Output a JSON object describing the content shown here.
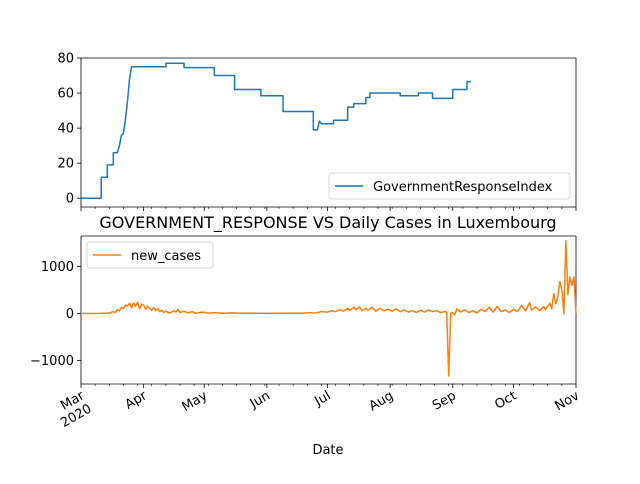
{
  "chart_data": [
    {
      "type": "line",
      "title": "",
      "xlabel": "",
      "ylabel": "",
      "ylim": [
        -5,
        80
      ],
      "yticks": [
        0,
        20,
        40,
        60,
        80
      ],
      "legend": "lower-right",
      "series": [
        {
          "name": "GovernmentResponseIndex",
          "color": "#1f77b4",
          "points": [
            [
              "2020-03-01",
              0
            ],
            [
              "2020-03-11",
              0
            ],
            [
              "2020-03-11",
              12
            ],
            [
              "2020-03-14",
              12
            ],
            [
              "2020-03-14",
              19
            ],
            [
              "2020-03-17",
              19
            ],
            [
              "2020-03-17",
              26
            ],
            [
              "2020-03-19",
              26
            ],
            [
              "2020-03-20",
              30
            ],
            [
              "2020-03-21",
              36
            ],
            [
              "2020-03-22",
              37
            ],
            [
              "2020-03-23",
              45
            ],
            [
              "2020-03-24",
              55
            ],
            [
              "2020-03-25",
              68
            ],
            [
              "2020-03-26",
              75
            ],
            [
              "2020-04-12",
              75
            ],
            [
              "2020-04-12",
              77
            ],
            [
              "2020-04-21",
              77
            ],
            [
              "2020-04-21",
              74.5
            ],
            [
              "2020-05-06",
              74.5
            ],
            [
              "2020-05-06",
              70
            ],
            [
              "2020-05-16",
              70
            ],
            [
              "2020-05-16",
              62
            ],
            [
              "2020-05-29",
              62
            ],
            [
              "2020-05-29",
              58.5
            ],
            [
              "2020-06-09",
              58.5
            ],
            [
              "2020-06-09",
              49.5
            ],
            [
              "2020-06-24",
              49.5
            ],
            [
              "2020-06-24",
              39
            ],
            [
              "2020-06-26",
              39
            ],
            [
              "2020-06-27",
              44
            ],
            [
              "2020-06-28",
              42.5
            ],
            [
              "2020-07-04",
              42.5
            ],
            [
              "2020-07-04",
              44.5
            ],
            [
              "2020-07-11",
              44.5
            ],
            [
              "2020-07-11",
              52
            ],
            [
              "2020-07-14",
              52
            ],
            [
              "2020-07-14",
              54
            ],
            [
              "2020-07-20",
              54
            ],
            [
              "2020-07-20",
              57.5
            ],
            [
              "2020-07-22",
              57.5
            ],
            [
              "2020-07-22",
              60
            ],
            [
              "2020-08-06",
              60
            ],
            [
              "2020-08-06",
              58.5
            ],
            [
              "2020-08-15",
              58.5
            ],
            [
              "2020-08-15",
              60
            ],
            [
              "2020-08-22",
              60
            ],
            [
              "2020-08-22",
              57
            ],
            [
              "2020-09-01",
              57
            ],
            [
              "2020-09-01",
              62
            ],
            [
              "2020-09-08",
              62
            ],
            [
              "2020-09-08",
              66.5
            ],
            [
              "2020-09-10",
              66.5
            ]
          ]
        }
      ]
    },
    {
      "type": "line",
      "title": "GOVERNMENT_RESPONSE VS Daily Cases in Luxembourg",
      "xlabel": "Date",
      "ylabel": "",
      "ylim": [
        -1500,
        1650
      ],
      "yticks": [
        -1000,
        0,
        1000
      ],
      "legend": "upper-left",
      "x_tick_labels": [
        [
          "2020-03-01",
          "Mar\n2020"
        ],
        [
          "2020-04-01",
          "Apr"
        ],
        [
          "2020-05-01",
          "May"
        ],
        [
          "2020-06-01",
          "Jun"
        ],
        [
          "2020-07-01",
          "Jul"
        ],
        [
          "2020-08-01",
          "Aug"
        ],
        [
          "2020-09-01",
          "Sep"
        ],
        [
          "2020-10-01",
          "Oct"
        ],
        [
          "2020-11-01",
          "Nov"
        ]
      ],
      "series": [
        {
          "name": "new_cases",
          "color": "#ff7f0e",
          "points": [
            [
              "2020-03-01",
              0
            ],
            [
              "2020-03-10",
              2
            ],
            [
              "2020-03-15",
              10
            ],
            [
              "2020-03-17",
              40
            ],
            [
              "2020-03-18",
              20
            ],
            [
              "2020-03-19",
              80
            ],
            [
              "2020-03-20",
              60
            ],
            [
              "2020-03-21",
              130
            ],
            [
              "2020-03-22",
              110
            ],
            [
              "2020-03-23",
              180
            ],
            [
              "2020-03-24",
              160
            ],
            [
              "2020-03-25",
              220
            ],
            [
              "2020-03-26",
              120
            ],
            [
              "2020-03-27",
              230
            ],
            [
              "2020-03-28",
              150
            ],
            [
              "2020-03-29",
              240
            ],
            [
              "2020-03-30",
              100
            ],
            [
              "2020-03-31",
              200
            ],
            [
              "2020-04-01",
              180
            ],
            [
              "2020-04-02",
              90
            ],
            [
              "2020-04-03",
              160
            ],
            [
              "2020-04-04",
              110
            ],
            [
              "2020-04-05",
              70
            ],
            [
              "2020-04-06",
              130
            ],
            [
              "2020-04-07",
              60
            ],
            [
              "2020-04-08",
              100
            ],
            [
              "2020-04-09",
              40
            ],
            [
              "2020-04-10",
              70
            ],
            [
              "2020-04-11",
              20
            ],
            [
              "2020-04-12",
              50
            ],
            [
              "2020-04-14",
              10
            ],
            [
              "2020-04-16",
              60
            ],
            [
              "2020-04-17",
              30
            ],
            [
              "2020-04-18",
              90
            ],
            [
              "2020-04-19",
              20
            ],
            [
              "2020-04-21",
              50
            ],
            [
              "2020-04-23",
              10
            ],
            [
              "2020-04-25",
              40
            ],
            [
              "2020-04-27",
              5
            ],
            [
              "2020-04-30",
              30
            ],
            [
              "2020-05-03",
              10
            ],
            [
              "2020-05-06",
              20
            ],
            [
              "2020-05-10",
              5
            ],
            [
              "2020-05-15",
              15
            ],
            [
              "2020-05-20",
              5
            ],
            [
              "2020-05-25",
              10
            ],
            [
              "2020-06-01",
              3
            ],
            [
              "2020-06-10",
              8
            ],
            [
              "2020-06-18",
              5
            ],
            [
              "2020-06-22",
              20
            ],
            [
              "2020-06-25",
              10
            ],
            [
              "2020-06-28",
              40
            ],
            [
              "2020-07-01",
              30
            ],
            [
              "2020-07-03",
              60
            ],
            [
              "2020-07-05",
              40
            ],
            [
              "2020-07-07",
              80
            ],
            [
              "2020-07-09",
              50
            ],
            [
              "2020-07-11",
              110
            ],
            [
              "2020-07-12",
              70
            ],
            [
              "2020-07-14",
              130
            ],
            [
              "2020-07-15",
              80
            ],
            [
              "2020-07-17",
              140
            ],
            [
              "2020-07-18",
              60
            ],
            [
              "2020-07-20",
              110
            ],
            [
              "2020-07-21",
              70
            ],
            [
              "2020-07-23",
              130
            ],
            [
              "2020-07-25",
              50
            ],
            [
              "2020-07-27",
              110
            ],
            [
              "2020-07-29",
              60
            ],
            [
              "2020-07-31",
              90
            ],
            [
              "2020-08-02",
              50
            ],
            [
              "2020-08-04",
              100
            ],
            [
              "2020-08-06",
              40
            ],
            [
              "2020-08-08",
              80
            ],
            [
              "2020-08-10",
              30
            ],
            [
              "2020-08-12",
              60
            ],
            [
              "2020-08-14",
              20
            ],
            [
              "2020-08-16",
              70
            ],
            [
              "2020-08-18",
              30
            ],
            [
              "2020-08-20",
              80
            ],
            [
              "2020-08-22",
              40
            ],
            [
              "2020-08-24",
              60
            ],
            [
              "2020-08-26",
              20
            ],
            [
              "2020-08-28",
              40
            ],
            [
              "2020-08-29",
              30
            ],
            [
              "2020-08-30",
              -1330
            ],
            [
              "2020-08-31",
              10
            ],
            [
              "2020-09-01",
              20
            ],
            [
              "2020-09-02",
              -30
            ],
            [
              "2020-09-03",
              100
            ],
            [
              "2020-09-05",
              30
            ],
            [
              "2020-09-07",
              80
            ],
            [
              "2020-09-09",
              20
            ],
            [
              "2020-09-11",
              60
            ],
            [
              "2020-09-13",
              10
            ],
            [
              "2020-09-15",
              90
            ],
            [
              "2020-09-17",
              40
            ],
            [
              "2020-09-19",
              130
            ],
            [
              "2020-09-21",
              30
            ],
            [
              "2020-09-23",
              150
            ],
            [
              "2020-09-25",
              40
            ],
            [
              "2020-09-27",
              80
            ],
            [
              "2020-09-29",
              20
            ],
            [
              "2020-10-01",
              90
            ],
            [
              "2020-10-03",
              40
            ],
            [
              "2020-10-05",
              170
            ],
            [
              "2020-10-07",
              60
            ],
            [
              "2020-10-09",
              230
            ],
            [
              "2020-10-10",
              80
            ],
            [
              "2020-10-12",
              140
            ],
            [
              "2020-10-14",
              60
            ],
            [
              "2020-10-16",
              150
            ],
            [
              "2020-10-17",
              80
            ],
            [
              "2020-10-19",
              220
            ],
            [
              "2020-10-20",
              100
            ],
            [
              "2020-10-21",
              420
            ],
            [
              "2020-10-22",
              200
            ],
            [
              "2020-10-23",
              350
            ],
            [
              "2020-10-24",
              680
            ],
            [
              "2020-10-25",
              500
            ],
            [
              "2020-10-26",
              0
            ],
            [
              "2020-10-27",
              1550
            ],
            [
              "2020-10-28",
              400
            ],
            [
              "2020-10-29",
              780
            ],
            [
              "2020-10-30",
              600
            ],
            [
              "2020-10-31",
              780
            ],
            [
              "2020-11-01",
              0
            ]
          ]
        }
      ]
    }
  ]
}
